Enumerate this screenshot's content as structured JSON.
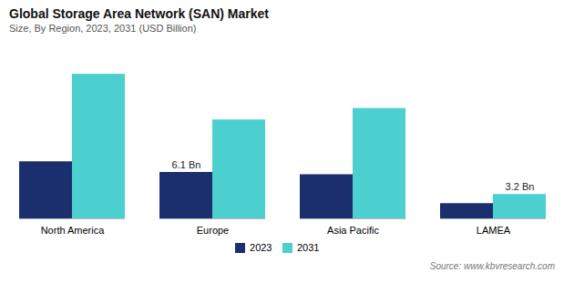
{
  "chart_data": {
    "type": "bar",
    "title": "Global Storage Area Network (SAN) Market",
    "subtitle": "Size, By Region, 2023, 2031 (USD Billion)",
    "source": "Source: www.kbvresearch.com",
    "categories": [
      "North America",
      "Europe",
      "Asia Pacific",
      "LAMEA"
    ],
    "series": [
      {
        "name": "2023",
        "color": "#1b2f6e",
        "values": [
          7.5,
          6.1,
          5.8,
          2.0
        ]
      },
      {
        "name": "2031",
        "color": "#4bcfcf",
        "values": [
          19.0,
          13.0,
          14.5,
          3.2
        ]
      }
    ],
    "annotations": [
      {
        "text": "6.1 Bn",
        "series": "2023",
        "category": "Europe"
      },
      {
        "text": "3.2 Bn",
        "series": "2031",
        "category": "LAMEA"
      }
    ],
    "ylim": [
      0,
      22
    ],
    "tick_labels": "x",
    "grid": false,
    "legend": "bottom"
  }
}
